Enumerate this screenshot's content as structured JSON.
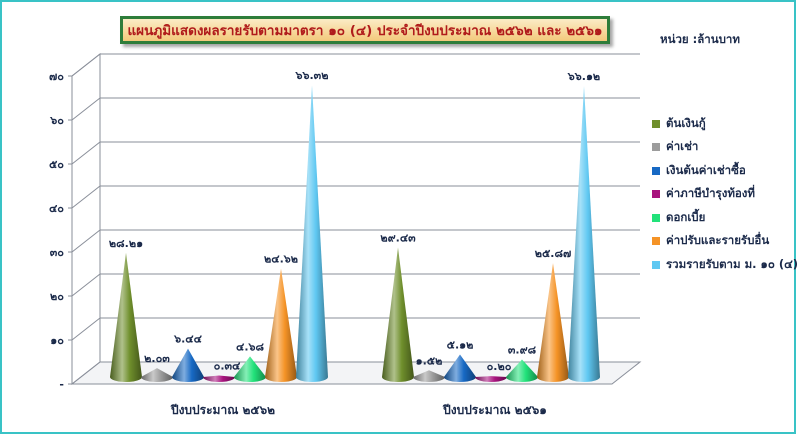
{
  "unit_label": "หน่วย :ล้านบาท",
  "chart_data": {
    "type": "bar",
    "style": "3d-cone",
    "title": "แผนภูมิแสดงผลรายรับตามมาตรา ๑๐ (๔) ประจำปีงบประมาณ ๒๕๖๒ และ ๒๕๖๑",
    "categories": [
      "ปีงบประมาณ ๒๕๖๒",
      "ปีงบประมาณ ๒๕๖๑"
    ],
    "ylim": [
      0,
      70
    ],
    "yticks": [
      "-",
      "๑๐",
      "๒๐",
      "๓๐",
      "๔๐",
      "๕๐",
      "๖๐",
      "๗๐"
    ],
    "grid": true,
    "legend_position": "right",
    "series": [
      {
        "name": "ต้นเงินกู้",
        "color": "#6f8f2c",
        "values": [
          28.21,
          29.43
        ],
        "labels": [
          "๒๘.๒๑",
          "๒๙.๔๓"
        ]
      },
      {
        "name": "ค่าเช่า",
        "color": "#9c9c9c",
        "values": [
          2.03,
          1.52
        ],
        "labels": [
          "๒.๐๓",
          "๑.๕๒"
        ]
      },
      {
        "name": "เงินต้นค่าเช่าซื้อ",
        "color": "#1769c4",
        "values": [
          6.44,
          5.12
        ],
        "labels": [
          "๖.๔๔",
          "๕.๑๒"
        ]
      },
      {
        "name": "ค่าภาษีบำรุงท้องที่",
        "color": "#a8137e",
        "values": [
          0.34,
          0.2
        ],
        "labels": [
          "๐.๓๔",
          "๐.๒๐"
        ]
      },
      {
        "name": "ดอกเบี้ย",
        "color": "#22e27a",
        "values": [
          4.68,
          3.98
        ],
        "labels": [
          "๔.๖๘",
          "๓.๙๘"
        ]
      },
      {
        "name": "ค่าปรับและรายรับอื่น",
        "color": "#f59326",
        "values": [
          24.62,
          25.87
        ],
        "labels": [
          "๒๔.๖๒",
          "๒๕.๘๗"
        ]
      },
      {
        "name": "รวมรายรับตาม ม. ๑๐ (๔)",
        "color": "#5fc8f2",
        "values": [
          66.32,
          66.12
        ],
        "labels": [
          "๖๖.๓๒",
          "๖๖.๑๒"
        ]
      }
    ]
  }
}
